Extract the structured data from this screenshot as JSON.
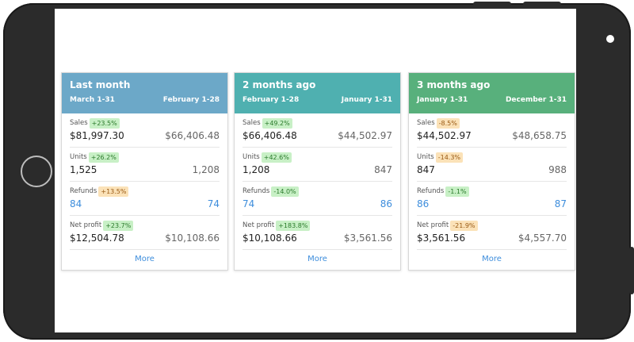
{
  "colors": {
    "header1": "#6ca8c8",
    "header2": "#4fb0b0",
    "header3": "#58b07c",
    "badge_positive": "#c8f0c6",
    "badge_negative": "#fbe2b8",
    "link": "#3d8ddc"
  },
  "cards": [
    {
      "title": "Last month",
      "date_left": "March 1-31",
      "date_right": "February 1-28",
      "sales": {
        "label": "Sales",
        "change": "+23.5%",
        "current": "$81,997.30",
        "previous": "$66,406.48"
      },
      "units": {
        "label": "Units",
        "change": "+26.2%",
        "current": "1,525",
        "previous": "1,208"
      },
      "refunds": {
        "label": "Refunds",
        "change": "+13.5%",
        "current": "84",
        "previous": "74"
      },
      "profit": {
        "label": "Net profit",
        "change": "+23.7%",
        "current": "$12,504.78",
        "previous": "$10,108.66"
      },
      "more": "More"
    },
    {
      "title": "2 months ago",
      "date_left": "February 1-28",
      "date_right": "January 1-31",
      "sales": {
        "label": "Sales",
        "change": "+49.2%",
        "current": "$66,406.48",
        "previous": "$44,502.97"
      },
      "units": {
        "label": "Units",
        "change": "+42.6%",
        "current": "1,208",
        "previous": "847"
      },
      "refunds": {
        "label": "Refunds",
        "change": "-14.0%",
        "current": "74",
        "previous": "86"
      },
      "profit": {
        "label": "Net profit",
        "change": "+183.8%",
        "current": "$10,108.66",
        "previous": "$3,561.56"
      },
      "more": "More"
    },
    {
      "title": "3 months ago",
      "date_left": "January 1-31",
      "date_right": "December 1-31",
      "sales": {
        "label": "Sales",
        "change": "-8.5%",
        "current": "$44,502.97",
        "previous": "$48,658.75"
      },
      "units": {
        "label": "Units",
        "change": "-14.3%",
        "current": "847",
        "previous": "988"
      },
      "refunds": {
        "label": "Refunds",
        "change": "-1.1%",
        "current": "86",
        "previous": "87"
      },
      "profit": {
        "label": "Net profit",
        "change": "-21.9%",
        "current": "$3,561.56",
        "previous": "$4,557.70"
      },
      "more": "More"
    }
  ]
}
